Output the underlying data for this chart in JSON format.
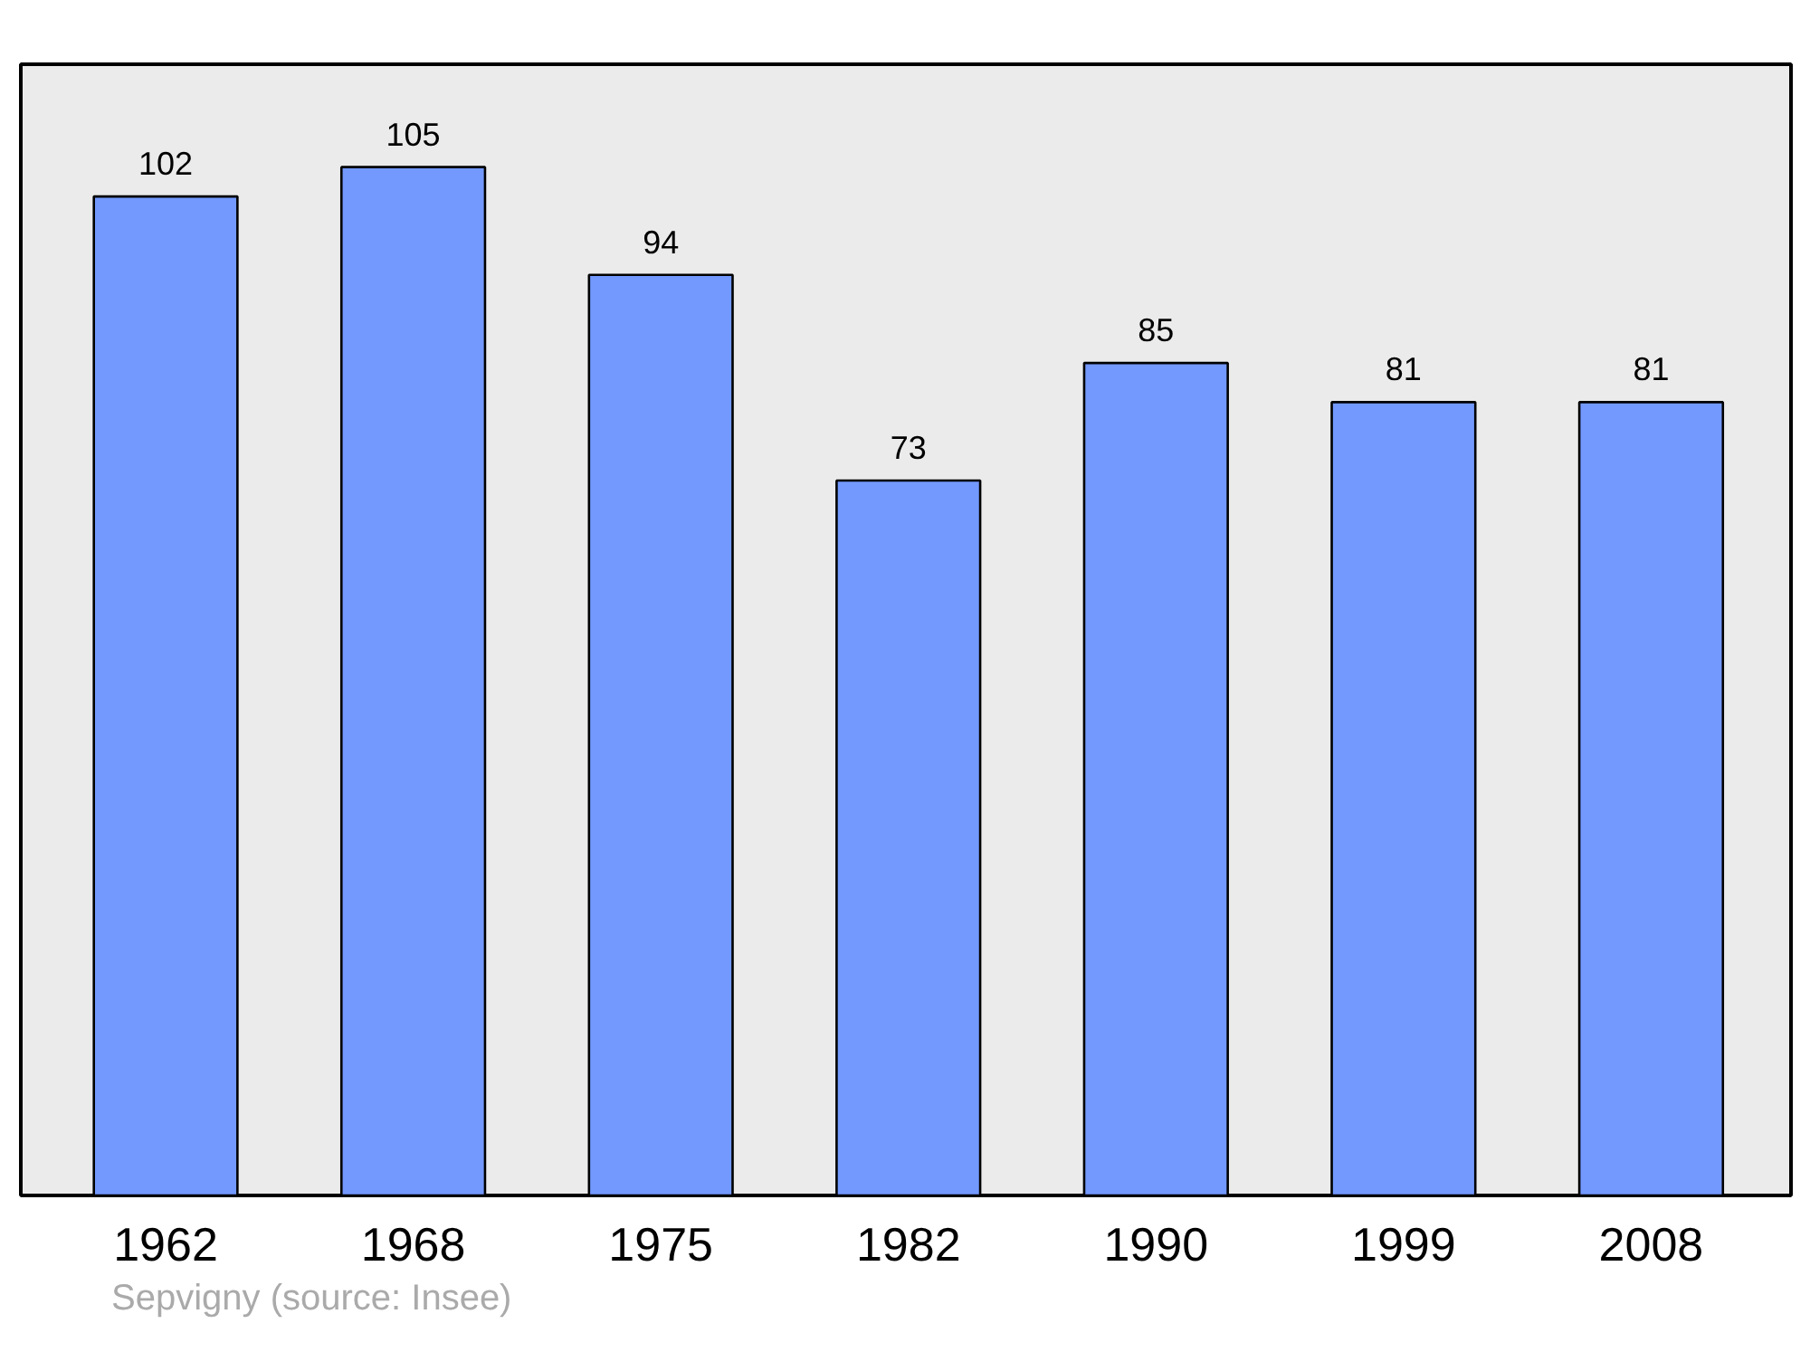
{
  "chart_data": {
    "type": "bar",
    "categories": [
      "1962",
      "1968",
      "1975",
      "1982",
      "1990",
      "1999",
      "2008"
    ],
    "values": [
      102,
      105,
      94,
      73,
      85,
      81,
      81
    ],
    "color": "#7399ff",
    "data_labels": true,
    "grid": false,
    "tick_labels": "x",
    "annotations": [
      "Sepvigny    (source: Insee)"
    ]
  }
}
